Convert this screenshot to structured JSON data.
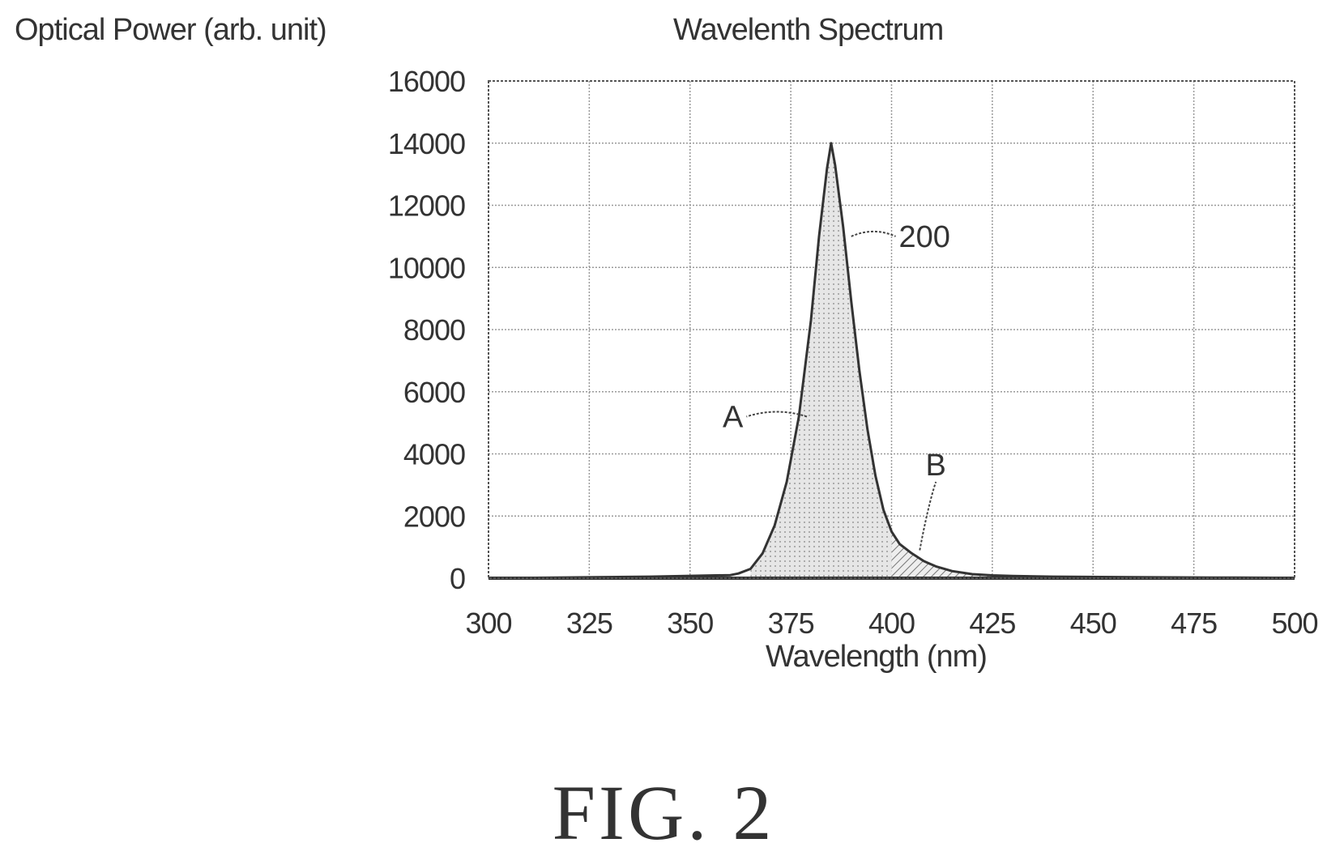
{
  "figure": {
    "caption": "FIG. 2"
  },
  "chart_data": {
    "type": "area",
    "title": "Wavelenth Spectrum",
    "ylabel": "Optical Power (arb. unit)",
    "xlabel": "Wavelength (nm)",
    "xlim": [
      300,
      500
    ],
    "ylim": [
      0,
      16000
    ],
    "x_ticks": [
      300,
      325,
      350,
      375,
      400,
      425,
      450,
      475,
      500
    ],
    "y_ticks": [
      0,
      2000,
      4000,
      6000,
      8000,
      10000,
      12000,
      14000,
      16000
    ],
    "grid": true,
    "legend": "none",
    "series": [
      {
        "name": "200",
        "x": [
          300,
          340,
          360,
          362,
          365,
          368,
          371,
          374,
          377,
          380,
          382,
          384,
          385,
          386,
          388,
          390,
          392,
          394,
          396,
          398,
          400,
          402,
          405,
          408,
          411,
          415,
          420,
          425,
          430,
          440,
          460,
          480,
          500
        ],
        "y": [
          0,
          50,
          100,
          150,
          300,
          800,
          1700,
          3100,
          5200,
          8300,
          11000,
          13200,
          14000,
          13300,
          11300,
          8900,
          6700,
          4800,
          3300,
          2200,
          1500,
          1100,
          800,
          550,
          380,
          230,
          130,
          90,
          70,
          50,
          30,
          20,
          10
        ]
      }
    ],
    "annotations": [
      {
        "label": "200",
        "x": 390,
        "y": 11000,
        "text_x": 401,
        "text_y": 11000
      },
      {
        "label": "A",
        "x": 379,
        "y": 5200,
        "text_x": 364,
        "text_y": 5200
      },
      {
        "label": "B",
        "x": 407,
        "y": 900,
        "text_x": 411,
        "text_y": 3100
      }
    ],
    "shaded_regions": [
      {
        "label": "A",
        "x_from": 365,
        "x_to": 400,
        "fill": "dots"
      },
      {
        "label": "B",
        "x_from": 400,
        "x_to": 425,
        "fill": "hatch"
      }
    ],
    "colors": {
      "line": "#333333",
      "grid": "#9a9a9a",
      "region_a": "#d9d9d9",
      "region_b": "#bdbdbd"
    }
  }
}
